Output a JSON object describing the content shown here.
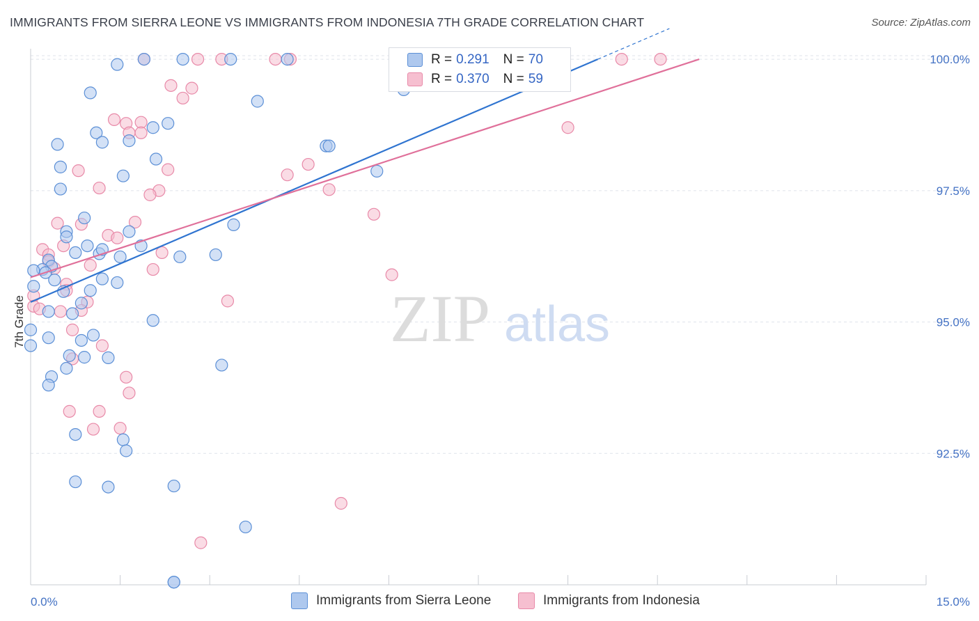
{
  "title": "IMMIGRANTS FROM SIERRA LEONE VS IMMIGRANTS FROM INDONESIA 7TH GRADE CORRELATION CHART",
  "source": "Source: ZipAtlas.com",
  "watermark": {
    "zip": "ZIP",
    "atlas": "atlas"
  },
  "legend": {
    "rows": [
      {
        "r_label": "R =",
        "r_value": "0.291",
        "n_label": "N =",
        "n_value": "70"
      },
      {
        "r_label": "R =",
        "r_value": "0.370",
        "n_label": "N =",
        "n_value": "59"
      }
    ]
  },
  "bottom_legend": {
    "series_a": "Immigrants from Sierra Leone",
    "series_b": "Immigrants from Indonesia"
  },
  "colors": {
    "blue_fill": "#aec8ee",
    "blue_stroke": "#5b8fd6",
    "blue_line": "#2f74d0",
    "pink_fill": "#f6bfd0",
    "pink_stroke": "#e889a8",
    "pink_line": "#e0709a",
    "grid": "#dfe3ea",
    "tick_label": "#4472c4"
  },
  "chart_data": {
    "type": "scatter",
    "title": "IMMIGRANTS FROM SIERRA LEONE VS IMMIGRANTS FROM INDONESIA 7TH GRADE CORRELATION CHART",
    "ylabel": "7th Grade",
    "xlim": [
      0,
      15
    ],
    "ylim": [
      90.0,
      100.2
    ],
    "x_tick_labels": [
      "0.0%",
      "15.0%"
    ],
    "y_ticks": [
      92.5,
      95.0,
      97.5,
      100.0
    ],
    "y_tick_labels": [
      "92.5%",
      "95.0%",
      "97.5%",
      "100.0%"
    ],
    "series": [
      {
        "name": "Immigrants from Sierra Leone",
        "color": "blue",
        "r": 0.291,
        "n": 70,
        "trend": {
          "x": [
            0,
            9.5
          ],
          "y": [
            95.38,
            100.0
          ]
        },
        "points": [
          [
            1.45,
            99.9
          ],
          [
            1.9,
            100.0
          ],
          [
            2.55,
            100.0
          ],
          [
            3.35,
            100.0
          ],
          [
            1.0,
            99.36
          ],
          [
            3.8,
            99.2
          ],
          [
            6.25,
            99.42
          ],
          [
            2.05,
            98.7
          ],
          [
            2.3,
            98.78
          ],
          [
            1.1,
            98.6
          ],
          [
            1.2,
            98.42
          ],
          [
            0.45,
            98.38
          ],
          [
            1.65,
            98.45
          ],
          [
            4.95,
            98.35
          ],
          [
            2.1,
            98.1
          ],
          [
            0.5,
            97.95
          ],
          [
            1.55,
            97.78
          ],
          [
            5.8,
            97.87
          ],
          [
            0.5,
            97.53
          ],
          [
            0.9,
            96.98
          ],
          [
            3.4,
            96.85
          ],
          [
            1.65,
            96.72
          ],
          [
            0.6,
            96.72
          ],
          [
            0.6,
            96.62
          ],
          [
            1.85,
            96.45
          ],
          [
            0.95,
            96.45
          ],
          [
            0.75,
            96.32
          ],
          [
            1.15,
            96.3
          ],
          [
            1.2,
            96.38
          ],
          [
            1.5,
            96.24
          ],
          [
            2.5,
            96.24
          ],
          [
            3.1,
            96.28
          ],
          [
            0.3,
            96.18
          ],
          [
            0.35,
            96.06
          ],
          [
            0.2,
            96.0
          ],
          [
            0.25,
            95.94
          ],
          [
            0.05,
            95.98
          ],
          [
            0.4,
            95.8
          ],
          [
            1.2,
            95.82
          ],
          [
            1.45,
            95.75
          ],
          [
            0.05,
            95.68
          ],
          [
            1.0,
            95.6
          ],
          [
            0.55,
            95.58
          ],
          [
            0.85,
            95.36
          ],
          [
            0.7,
            95.16
          ],
          [
            0.3,
            95.2
          ],
          [
            2.05,
            95.03
          ],
          [
            0.85,
            94.65
          ],
          [
            1.05,
            94.75
          ],
          [
            0.3,
            94.7
          ],
          [
            0.0,
            94.55
          ],
          [
            0.0,
            94.85
          ],
          [
            0.65,
            94.36
          ],
          [
            0.9,
            94.33
          ],
          [
            1.3,
            94.32
          ],
          [
            3.2,
            94.18
          ],
          [
            0.6,
            94.12
          ],
          [
            0.35,
            93.96
          ],
          [
            0.3,
            93.8
          ],
          [
            0.75,
            92.86
          ],
          [
            1.55,
            92.76
          ],
          [
            1.6,
            92.55
          ],
          [
            0.75,
            91.96
          ],
          [
            1.3,
            91.86
          ],
          [
            2.4,
            91.88
          ],
          [
            3.6,
            91.1
          ],
          [
            2.4,
            90.05
          ],
          [
            2.4,
            90.05
          ],
          [
            4.3,
            100.0
          ],
          [
            5.0,
            98.35
          ]
        ]
      },
      {
        "name": "Immigrants from Indonesia",
        "color": "pink",
        "r": 0.37,
        "n": 59,
        "trend": {
          "x": [
            0,
            11.2
          ],
          "y": [
            95.85,
            100.0
          ]
        },
        "points": [
          [
            1.9,
            100.0
          ],
          [
            2.8,
            100.0
          ],
          [
            3.2,
            100.0
          ],
          [
            4.1,
            100.0
          ],
          [
            4.35,
            100.0
          ],
          [
            9.9,
            100.0
          ],
          [
            10.55,
            100.0
          ],
          [
            2.35,
            99.5
          ],
          [
            2.7,
            99.45
          ],
          [
            2.55,
            99.26
          ],
          [
            1.4,
            98.85
          ],
          [
            1.6,
            98.78
          ],
          [
            1.85,
            98.8
          ],
          [
            1.65,
            98.6
          ],
          [
            1.85,
            98.6
          ],
          [
            9.0,
            98.7
          ],
          [
            4.65,
            98.0
          ],
          [
            2.3,
            97.9
          ],
          [
            0.8,
            97.88
          ],
          [
            4.3,
            97.8
          ],
          [
            1.15,
            97.55
          ],
          [
            2.15,
            97.5
          ],
          [
            2.0,
            97.42
          ],
          [
            5.0,
            97.52
          ],
          [
            5.75,
            97.05
          ],
          [
            0.45,
            96.88
          ],
          [
            0.85,
            96.86
          ],
          [
            1.3,
            96.65
          ],
          [
            1.45,
            96.6
          ],
          [
            1.75,
            96.9
          ],
          [
            0.55,
            96.45
          ],
          [
            0.2,
            96.38
          ],
          [
            0.3,
            96.28
          ],
          [
            2.2,
            96.32
          ],
          [
            0.3,
            96.15
          ],
          [
            1.0,
            96.08
          ],
          [
            0.4,
            96.02
          ],
          [
            2.05,
            96.0
          ],
          [
            6.05,
            95.9
          ],
          [
            0.6,
            95.72
          ],
          [
            0.6,
            95.6
          ],
          [
            0.95,
            95.38
          ],
          [
            3.3,
            95.4
          ],
          [
            0.05,
            95.5
          ],
          [
            0.05,
            95.3
          ],
          [
            0.15,
            95.25
          ],
          [
            0.5,
            95.2
          ],
          [
            0.85,
            95.22
          ],
          [
            0.7,
            94.85
          ],
          [
            1.2,
            94.55
          ],
          [
            0.7,
            94.3
          ],
          [
            1.6,
            93.95
          ],
          [
            1.65,
            93.65
          ],
          [
            0.65,
            93.3
          ],
          [
            1.15,
            93.3
          ],
          [
            1.05,
            92.96
          ],
          [
            1.5,
            92.98
          ],
          [
            5.2,
            91.55
          ],
          [
            2.85,
            90.8
          ]
        ]
      }
    ]
  }
}
